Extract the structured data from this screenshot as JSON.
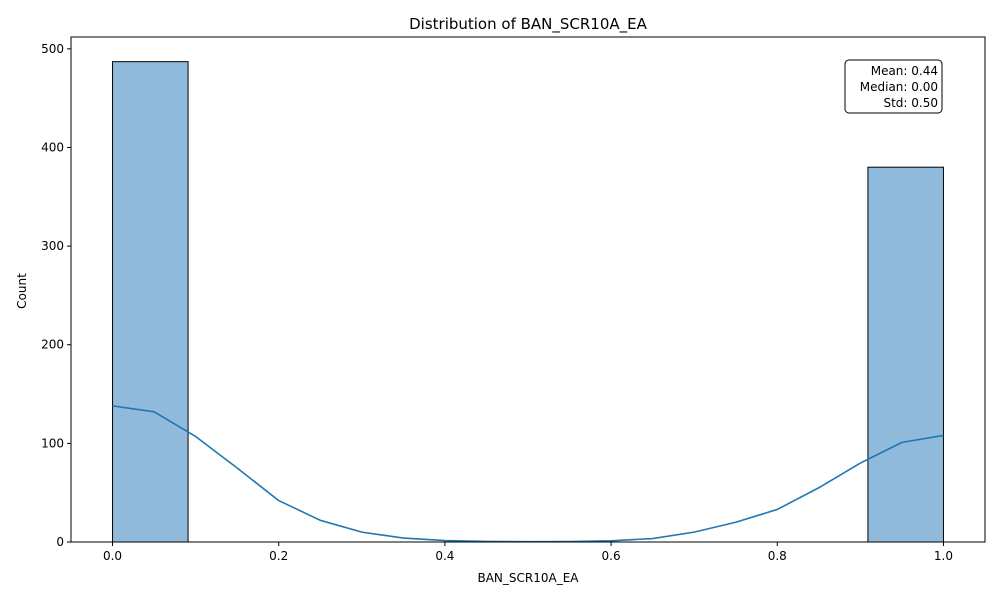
{
  "chart_data": {
    "type": "bar",
    "title": "Distribution of BAN_SCR10A_EA",
    "xlabel": "BAN_SCR10A_EA",
    "ylabel": "Count",
    "xlim": [
      -0.05,
      1.05
    ],
    "ylim": [
      0,
      512
    ],
    "x_ticks": [
      0.0,
      0.2,
      0.4,
      0.6,
      0.8,
      1.0
    ],
    "x_tick_labels": [
      "0.0",
      "0.2",
      "0.4",
      "0.6",
      "0.8",
      "1.0"
    ],
    "y_ticks": [
      0,
      100,
      200,
      300,
      400,
      500
    ],
    "y_tick_labels": [
      "0",
      "100",
      "200",
      "300",
      "400",
      "500"
    ],
    "bins": [
      {
        "start": 0.0,
        "end": 0.0909,
        "count": 487
      },
      {
        "start": 0.0909,
        "end": 0.1818,
        "count": 0
      },
      {
        "start": 0.1818,
        "end": 0.2727,
        "count": 0
      },
      {
        "start": 0.2727,
        "end": 0.3636,
        "count": 0
      },
      {
        "start": 0.3636,
        "end": 0.4545,
        "count": 0
      },
      {
        "start": 0.4545,
        "end": 0.5455,
        "count": 0
      },
      {
        "start": 0.5455,
        "end": 0.6364,
        "count": 0
      },
      {
        "start": 0.6364,
        "end": 0.7273,
        "count": 0
      },
      {
        "start": 0.7273,
        "end": 0.8182,
        "count": 0
      },
      {
        "start": 0.8182,
        "end": 0.9091,
        "count": 0
      },
      {
        "start": 0.9091,
        "end": 1.0,
        "count": 380
      }
    ],
    "kde": {
      "x": [
        0.0,
        0.05,
        0.1,
        0.15,
        0.2,
        0.25,
        0.3,
        0.35,
        0.4,
        0.45,
        0.5,
        0.55,
        0.6,
        0.65,
        0.7,
        0.75,
        0.8,
        0.85,
        0.9,
        0.95,
        1.0
      ],
      "y": [
        138,
        132,
        107,
        75,
        42,
        22,
        10,
        4,
        1.5,
        0.6,
        0.3,
        0.5,
        1.2,
        3.5,
        10,
        20,
        33,
        55,
        80,
        101,
        108
      ]
    },
    "stats_box": {
      "lines": [
        "Mean: 0.44",
        "Median: 0.00",
        "Std: 0.50"
      ],
      "placement": "top-right"
    },
    "colors": {
      "bar_fill": "#8fbadb",
      "bar_edge": "#000000",
      "kde_line": "#1f77b4",
      "axes": "#000000",
      "box_edge": "#000000",
      "box_fill": "#ffffff"
    },
    "grid": false,
    "legend": "none"
  }
}
